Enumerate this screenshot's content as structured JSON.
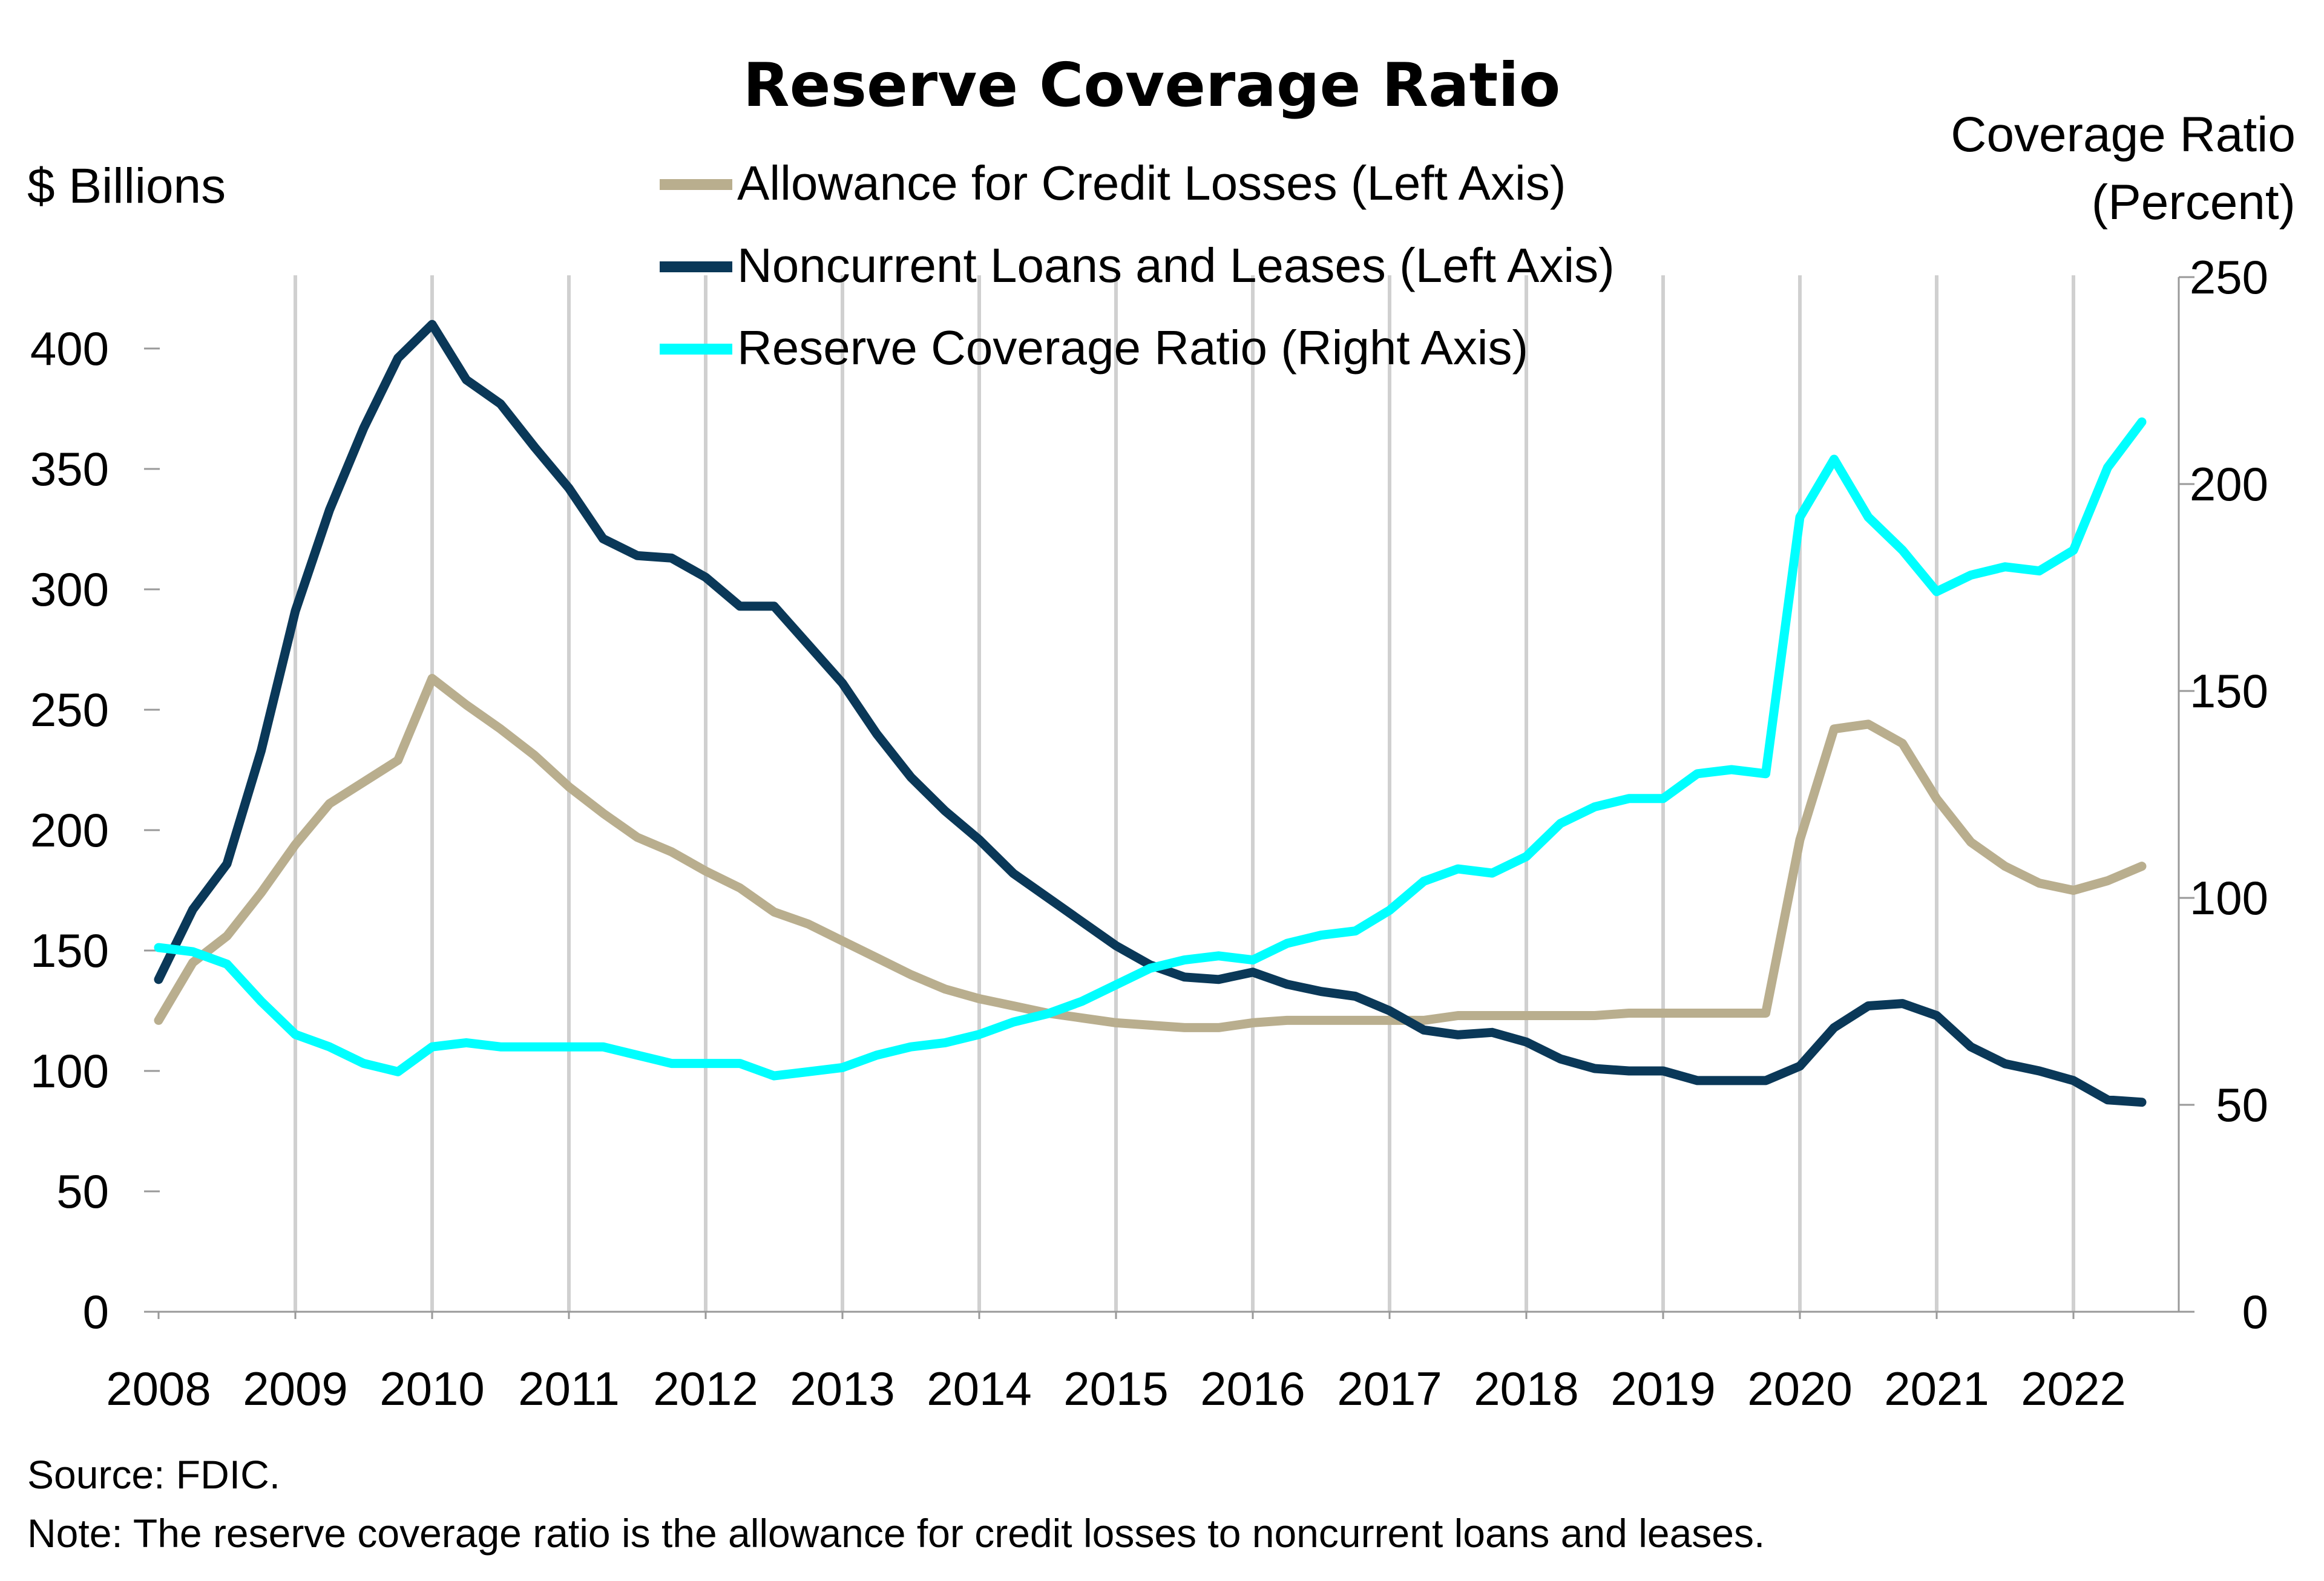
{
  "chart_data": {
    "type": "line",
    "title": "Reserve Coverage Ratio",
    "left_axis": {
      "label": "$ Billions",
      "ylim": [
        0,
        430
      ],
      "ticks": [
        0,
        50,
        100,
        150,
        200,
        250,
        300,
        350,
        400
      ]
    },
    "right_axis": {
      "label_lines": [
        "Coverage Ratio",
        "(Percent)"
      ],
      "ylim": [
        0,
        250
      ],
      "ticks": [
        0,
        50,
        100,
        150,
        200,
        250
      ]
    },
    "x_axis": {
      "range": [
        2008,
        2022.75
      ],
      "tick_labels": [
        "2008",
        "2009",
        "2010",
        "2011",
        "2012",
        "2013",
        "2014",
        "2015",
        "2016",
        "2017",
        "2018",
        "2019",
        "2020",
        "2021",
        "2022"
      ]
    },
    "grid": "vertical",
    "legend_placement": "top-center",
    "x": [
      2008.0,
      2008.25,
      2008.5,
      2008.75,
      2009.0,
      2009.25,
      2009.5,
      2009.75,
      2010.0,
      2010.25,
      2010.5,
      2010.75,
      2011.0,
      2011.25,
      2011.5,
      2011.75,
      2012.0,
      2012.25,
      2012.5,
      2012.75,
      2013.0,
      2013.25,
      2013.5,
      2013.75,
      2014.0,
      2014.25,
      2014.5,
      2014.75,
      2015.0,
      2015.25,
      2015.5,
      2015.75,
      2016.0,
      2016.25,
      2016.5,
      2016.75,
      2017.0,
      2017.25,
      2017.5,
      2017.75,
      2018.0,
      2018.25,
      2018.5,
      2018.75,
      2019.0,
      2019.25,
      2019.5,
      2019.75,
      2020.0,
      2020.25,
      2020.5,
      2020.75,
      2021.0,
      2021.25,
      2021.5,
      2021.75,
      2022.0,
      2022.25,
      2022.5
    ],
    "series": [
      {
        "name": "Allowance for Credit Losses (Left Axis)",
        "axis": "left",
        "color": "#b9ae8e",
        "values": [
          121,
          145,
          156,
          174,
          194,
          211,
          220,
          229,
          263,
          252,
          242,
          231,
          218,
          207,
          197,
          191,
          183,
          176,
          166,
          161,
          154,
          147,
          140,
          134,
          130,
          127,
          124,
          122,
          120,
          119,
          118,
          118,
          120,
          121,
          121,
          121,
          121,
          121,
          123,
          123,
          123,
          123,
          123,
          124,
          124,
          124,
          124,
          124,
          196,
          242,
          244,
          236,
          213,
          195,
          185,
          178,
          175,
          179,
          185
        ]
      },
      {
        "name": "Noncurrent Loans and Leases (Left Axis)",
        "axis": "left",
        "color": "#0a3858",
        "values": [
          138,
          167,
          186,
          233,
          291,
          333,
          367,
          396,
          410,
          387,
          377,
          359,
          342,
          321,
          314,
          313,
          305,
          293,
          293,
          277,
          261,
          240,
          222,
          208,
          196,
          182,
          172,
          162,
          152,
          144,
          139,
          138,
          141,
          136,
          133,
          131,
          125,
          117,
          115,
          116,
          112,
          105,
          101,
          100,
          100,
          96,
          96,
          96,
          102,
          118,
          127,
          128,
          123,
          110,
          103,
          100,
          96,
          88,
          87
        ]
      },
      {
        "name": "Reserve Coverage Ratio (Right Axis)",
        "axis": "right",
        "color": "#00ffff",
        "values": [
          88,
          87,
          84,
          75,
          67,
          64,
          60,
          58,
          64,
          65,
          64,
          64,
          64,
          64,
          62,
          60,
          60,
          60,
          57,
          58,
          59,
          62,
          64,
          65,
          67,
          70,
          72,
          75,
          79,
          83,
          85,
          86,
          85,
          89,
          91,
          92,
          97,
          104,
          107,
          106,
          110,
          118,
          122,
          124,
          124,
          130,
          131,
          130,
          192,
          206,
          192,
          184,
          174,
          178,
          180,
          179,
          184,
          204,
          215
        ]
      }
    ]
  },
  "source_note": "Source: FDIC.",
  "footnote": "Note: The reserve coverage ratio is the allowance for credit losses to noncurrent loans and leases."
}
